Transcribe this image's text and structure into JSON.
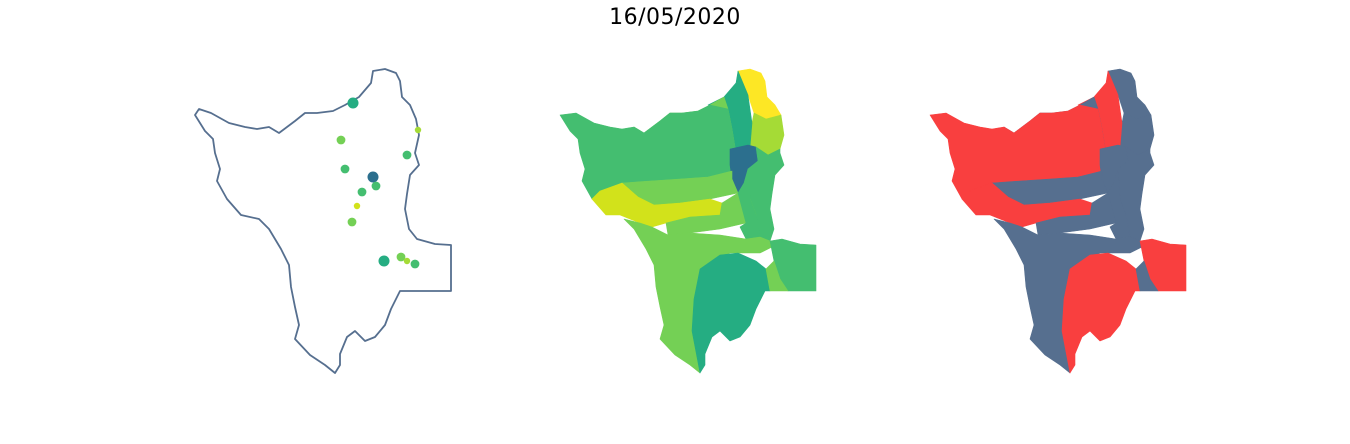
{
  "title": "16/05/2020",
  "colors": {
    "outline": "#566f8f",
    "viridis_dark": "#2c6f8e",
    "viridis_teal": "#25ad82",
    "viridis_green": "#44be70",
    "viridis_lightgreen": "#74d055",
    "viridis_lime": "#a5db36",
    "viridis_yellowlime": "#d2e21b",
    "viridis_yellow": "#fde725",
    "binary_high": "#f93f3f",
    "binary_low": "#566f8f"
  },
  "panels": [
    {
      "name": "point-map",
      "type": "points",
      "points": [
        {
          "color": "#25ad82",
          "size": "large"
        },
        {
          "color": "#a5db36",
          "size": "small"
        },
        {
          "color": "#74d055",
          "size": "medium"
        },
        {
          "color": "#44be70",
          "size": "medium"
        },
        {
          "color": "#44be70",
          "size": "medium"
        },
        {
          "color": "#2c6f8e",
          "size": "large"
        },
        {
          "color": "#44be70",
          "size": "medium"
        },
        {
          "color": "#44be70",
          "size": "medium"
        },
        {
          "color": "#d2e21b",
          "size": "small"
        },
        {
          "color": "#74d055",
          "size": "medium"
        },
        {
          "color": "#25ad82",
          "size": "large"
        },
        {
          "color": "#74d055",
          "size": "medium"
        },
        {
          "color": "#a5db36",
          "size": "small"
        },
        {
          "color": "#44be70",
          "size": "medium"
        }
      ]
    },
    {
      "name": "viridis-choropleth",
      "type": "choropleth",
      "regions": [
        {
          "name": "north-tip",
          "color": "#fde725"
        },
        {
          "name": "northeast",
          "color": "#a5db36"
        },
        {
          "name": "north-teal",
          "color": "#25ad82"
        },
        {
          "name": "north-center",
          "color": "#74d055"
        },
        {
          "name": "west",
          "color": "#44be70"
        },
        {
          "name": "center-dark",
          "color": "#2c6f8e"
        },
        {
          "name": "east-strip",
          "color": "#44be70"
        },
        {
          "name": "west-center",
          "color": "#74d055"
        },
        {
          "name": "yellow-band",
          "color": "#d2e21b"
        },
        {
          "name": "center",
          "color": "#74d055"
        },
        {
          "name": "center-east",
          "color": "#44be70"
        },
        {
          "name": "southwest",
          "color": "#74d055"
        },
        {
          "name": "south-teal",
          "color": "#25ad82"
        },
        {
          "name": "east-box",
          "color": "#44be70"
        },
        {
          "name": "southeast-small",
          "color": "#74d055"
        }
      ]
    },
    {
      "name": "binary-choropleth",
      "type": "choropleth",
      "regions": [
        {
          "name": "north-tip",
          "color": "#566f8f"
        },
        {
          "name": "northeast",
          "color": "#566f8f"
        },
        {
          "name": "north-teal",
          "color": "#f93f3f"
        },
        {
          "name": "north-center",
          "color": "#566f8f"
        },
        {
          "name": "west",
          "color": "#f93f3f"
        },
        {
          "name": "center-dark",
          "color": "#566f8f"
        },
        {
          "name": "east-strip",
          "color": "#566f8f"
        },
        {
          "name": "west-center",
          "color": "#566f8f"
        },
        {
          "name": "yellow-band",
          "color": "#f93f3f"
        },
        {
          "name": "center",
          "color": "#566f8f"
        },
        {
          "name": "center-east",
          "color": "#566f8f"
        },
        {
          "name": "southwest",
          "color": "#566f8f"
        },
        {
          "name": "south-teal",
          "color": "#f93f3f"
        },
        {
          "name": "east-box",
          "color": "#f93f3f"
        },
        {
          "name": "southeast-small",
          "color": "#566f8f"
        }
      ]
    }
  ]
}
